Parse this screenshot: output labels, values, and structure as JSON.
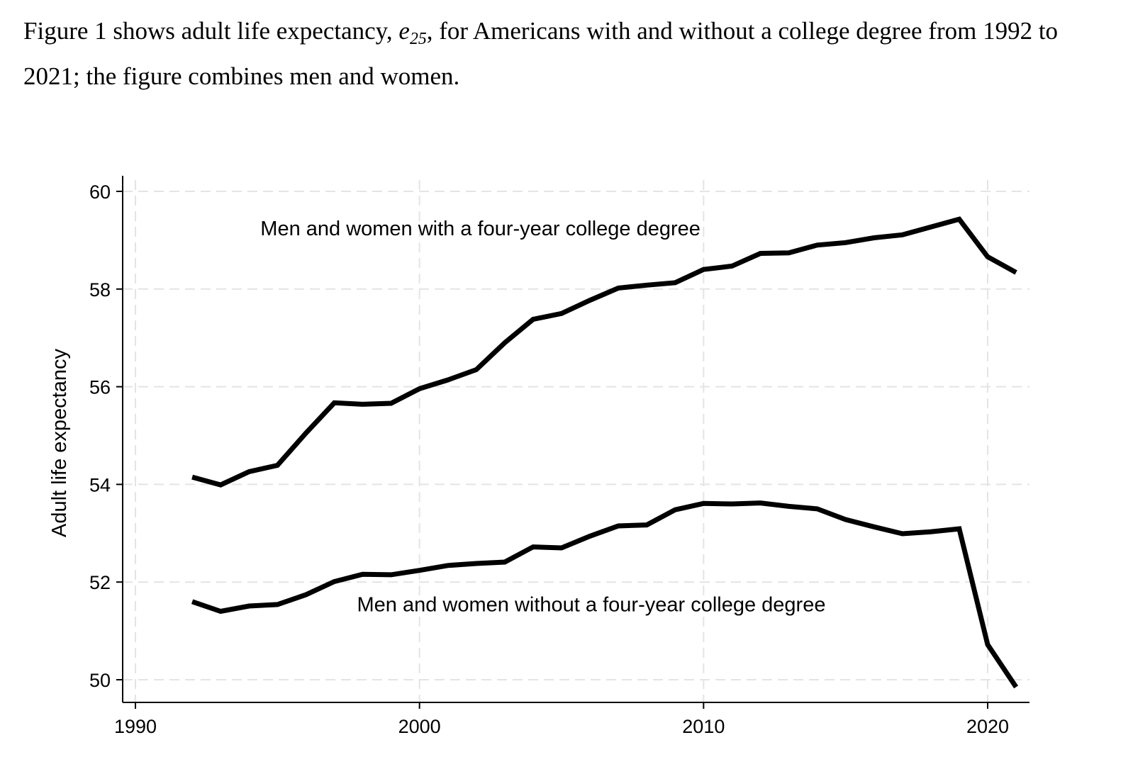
{
  "intro_text": {
    "part1": "Figure 1 shows adult life expectancy, ",
    "var_base": "e",
    "var_sub": "25",
    "part2": ", for Americans with and without a college degree from 1992 to 2021; the figure combines men and women."
  },
  "chart_data": {
    "type": "line",
    "title": "",
    "xlabel": "",
    "ylabel": "Adult life expectancy",
    "xlim": [
      1989.5,
      2021.5
    ],
    "ylim": [
      49.6,
      60.3
    ],
    "xticks": [
      1990,
      2000,
      2010,
      2020
    ],
    "yticks": [
      50,
      52,
      54,
      56,
      58,
      60
    ],
    "grid": true,
    "grid_style": "dashed",
    "legend": "none",
    "line_color": "#000000",
    "x": [
      1992,
      1993,
      1994,
      1995,
      1996,
      1997,
      1998,
      1999,
      2000,
      2001,
      2002,
      2003,
      2004,
      2005,
      2006,
      2007,
      2008,
      2009,
      2010,
      2011,
      2012,
      2013,
      2014,
      2015,
      2016,
      2017,
      2018,
      2019,
      2020,
      2021
    ],
    "series": [
      {
        "label": "Men and women with a four-year college degree",
        "label_anchor": {
          "x": 1994.4,
          "y": 59.1
        },
        "values": [
          54.15,
          53.99,
          54.26,
          54.39,
          55.05,
          55.67,
          55.64,
          55.66,
          55.96,
          56.14,
          56.35,
          56.9,
          57.38,
          57.5,
          57.77,
          58.02,
          58.08,
          58.13,
          58.4,
          58.47,
          58.73,
          58.74,
          58.9,
          58.95,
          59.05,
          59.11,
          59.27,
          59.43,
          58.66,
          58.34
        ]
      },
      {
        "label": "Men and women without a four-year college degree",
        "label_anchor": {
          "x": 1997.8,
          "y": 51.4
        },
        "values": [
          51.6,
          51.4,
          51.51,
          51.54,
          51.74,
          52.01,
          52.16,
          52.15,
          52.24,
          52.34,
          52.38,
          52.41,
          52.72,
          52.7,
          52.94,
          53.15,
          53.17,
          53.48,
          53.61,
          53.6,
          53.62,
          53.55,
          53.5,
          53.28,
          53.13,
          52.99,
          53.03,
          53.09,
          50.72,
          49.85
        ]
      }
    ]
  }
}
